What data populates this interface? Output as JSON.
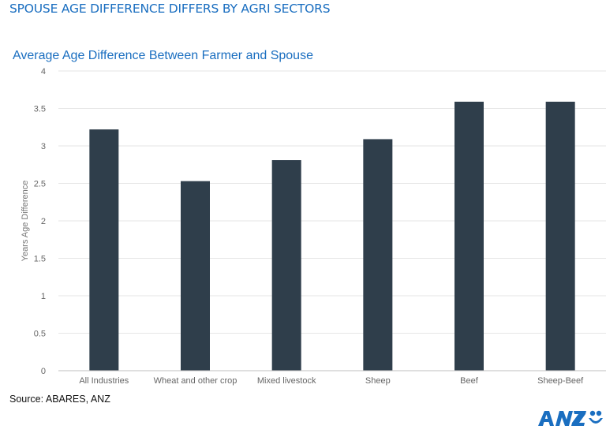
{
  "page": {
    "title": "SPOUSE AGE DIFFERENCE DIFFERS BY AGRI SECTORS",
    "source": "Source: ABARES, ANZ",
    "logo_text": "ANZ",
    "colors": {
      "accent": "#1a6ec0",
      "bar": "#2f3e4b"
    }
  },
  "chart_data": {
    "type": "bar",
    "title": "Average Age Difference  Between Farmer and Spouse",
    "xlabel": "",
    "ylabel": "Years Age Difference",
    "categories": [
      "All Industries",
      "Wheat and other crop",
      "Mixed livestock",
      "Sheep",
      "Beef",
      "Sheep-Beef"
    ],
    "values": [
      3.22,
      2.53,
      2.81,
      3.09,
      3.59,
      3.59
    ],
    "ylim": [
      0,
      4
    ],
    "yticks": [
      "0",
      "0.5",
      "1",
      "1.5",
      "2",
      "2.5",
      "3",
      "3.5",
      "4"
    ],
    "grid": true,
    "legend": "none"
  }
}
